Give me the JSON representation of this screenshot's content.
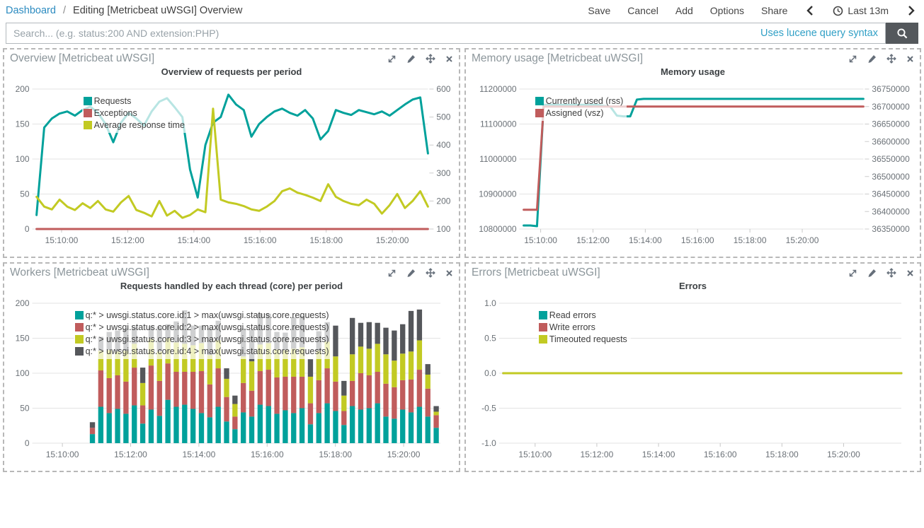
{
  "nav": {
    "breadcrumb": {
      "link": "Dashboard",
      "separator": "/",
      "current": "Editing [Metricbeat uWSGI] Overview"
    },
    "actions": [
      {
        "label": "Save"
      },
      {
        "label": "Cancel"
      },
      {
        "label": "Add"
      },
      {
        "label": "Options"
      },
      {
        "label": "Share"
      }
    ],
    "time_picker": {
      "label": "Last 13m"
    }
  },
  "search": {
    "placeholder": "Search... (e.g. status:200 AND extension:PHP)",
    "hint": "Uses lucene query syntax"
  },
  "colors": {
    "teal": "#00a19b",
    "red": "#c05c5c",
    "yellow": "#c2ca23",
    "dark_gray": "#55575b",
    "link": "#2c8bc0",
    "hint": "#31a0c6",
    "button_bg": "#54585c"
  },
  "panels": [
    {
      "title": "Overview [Metricbeat uWSGI]"
    },
    {
      "title": "Memory usage [Metricbeat uWSGI]"
    },
    {
      "title": "Workers [Metricbeat uWSGI]"
    },
    {
      "title": "Errors [Metricbeat uWSGI]"
    }
  ],
  "chart_data": [
    {
      "type": "line",
      "title": "Overview of requests per period",
      "left_axis": {
        "min": 0,
        "max": 200,
        "ticks": [
          {
            "v": 0,
            "label": "0"
          },
          {
            "v": 50,
            "label": "50"
          },
          {
            "v": 100,
            "label": "100"
          },
          {
            "v": 150,
            "label": "150"
          },
          {
            "v": 200,
            "label": "200"
          }
        ]
      },
      "right_axis": {
        "min": 100,
        "max": 600,
        "ticks": [
          {
            "v": 100,
            "label": "100"
          },
          {
            "v": 200,
            "label": "200"
          },
          {
            "v": 300,
            "label": "300"
          },
          {
            "v": 400,
            "label": "400"
          },
          {
            "v": 500,
            "label": "500"
          },
          {
            "v": 600,
            "label": "600"
          }
        ]
      },
      "x_ticks": [
        {
          "pos": 0.064,
          "label": "15:10:00"
        },
        {
          "pos": 0.233,
          "label": "15:12:00"
        },
        {
          "pos": 0.402,
          "label": "15:14:00"
        },
        {
          "pos": 0.571,
          "label": "15:16:00"
        },
        {
          "pos": 0.74,
          "label": "15:18:00"
        },
        {
          "pos": 0.909,
          "label": "15:20:00"
        }
      ],
      "legend": [
        {
          "label": "Requests",
          "color": "#00a19b"
        },
        {
          "label": "Exceptions",
          "color": "#c05c5c"
        },
        {
          "label": "Average response time",
          "color": "#c2ca23"
        }
      ],
      "series": [
        {
          "name": "Requests",
          "axis": "left",
          "color": "#00a19b",
          "values": [
            20,
            145,
            158,
            165,
            168,
            162,
            170,
            175,
            166,
            150,
            124,
            152,
            166,
            158,
            148,
            168,
            182,
            187,
            174,
            160,
            85,
            45,
            120,
            152,
            160,
            192,
            178,
            170,
            132,
            150,
            160,
            168,
            172,
            166,
            162,
            170,
            158,
            128,
            140,
            170,
            166,
            163,
            170,
            167,
            164,
            168,
            162,
            170,
            178,
            185,
            188,
            108
          ]
        },
        {
          "name": "Exceptions",
          "axis": "left",
          "color": "#c05c5c",
          "flat": 0
        },
        {
          "name": "Average response time",
          "axis": "right",
          "color": "#c2ca23",
          "values": [
            215,
            180,
            170,
            205,
            180,
            168,
            192,
            175,
            200,
            170,
            162,
            195,
            218,
            168,
            158,
            145,
            200,
            148,
            165,
            140,
            150,
            170,
            160,
            530,
            205,
            195,
            190,
            182,
            170,
            165,
            180,
            200,
            235,
            245,
            230,
            222,
            212,
            200,
            260,
            215,
            200,
            190,
            185,
            205,
            190,
            155,
            185,
            225,
            175,
            200,
            235,
            180
          ]
        }
      ]
    },
    {
      "type": "line",
      "title": "Memory usage",
      "left_axis": {
        "min": 10800000,
        "max": 11200000,
        "ticks": [
          {
            "v": 10800000,
            "label": "10800000"
          },
          {
            "v": 10900000,
            "label": "10900000"
          },
          {
            "v": 11000000,
            "label": "11000000"
          },
          {
            "v": 11100000,
            "label": "11100000"
          },
          {
            "v": 11200000,
            "label": "11200000"
          }
        ]
      },
      "right_axis": {
        "min": 36350000,
        "max": 36750000,
        "ticks": [
          {
            "v": 36350000,
            "label": "36350000"
          },
          {
            "v": 36400000,
            "label": "36400000"
          },
          {
            "v": 36450000,
            "label": "36450000"
          },
          {
            "v": 36500000,
            "label": "36500000"
          },
          {
            "v": 36550000,
            "label": "36550000"
          },
          {
            "v": 36600000,
            "label": "36600000"
          },
          {
            "v": 36650000,
            "label": "36650000"
          },
          {
            "v": 36700000,
            "label": "36700000"
          },
          {
            "v": 36750000,
            "label": "36750000"
          }
        ]
      },
      "x_ticks": [
        {
          "pos": 0.05,
          "label": "15:10:00"
        },
        {
          "pos": 0.204,
          "label": "15:12:00"
        },
        {
          "pos": 0.358,
          "label": "15:14:00"
        },
        {
          "pos": 0.512,
          "label": "15:16:00"
        },
        {
          "pos": 0.666,
          "label": "15:18:00"
        },
        {
          "pos": 0.82,
          "label": "15:20:00"
        }
      ],
      "legend": [
        {
          "label": "Currently used (rss)",
          "color": "#00a19b"
        },
        {
          "label": "Assigned (vsz)",
          "color": "#c05c5c"
        }
      ],
      "series": [
        {
          "name": "Currently used (rss)",
          "axis": "left",
          "color": "#00a19b",
          "values": [
            10810000,
            10810000,
            10808000,
            11155000,
            11155000,
            11155000,
            11155000,
            11155000,
            11155000,
            11155000,
            11155000,
            11155000,
            11152000,
            11150000,
            11124000,
            11122000,
            11122000,
            11170000,
            11172000,
            11172000,
            11172000,
            11172000,
            11172000,
            11172000,
            11172000,
            11172000,
            11172000,
            11172000,
            11172000,
            11172000,
            11172000,
            11172000,
            11172000,
            11172000,
            11172000,
            11172000,
            11172000,
            11172000,
            11172000,
            11172000,
            11172000,
            11172000,
            11172000,
            11172000,
            11172000,
            11172000,
            11172000,
            11172000,
            11172000,
            11172000,
            11172000,
            11172000
          ]
        },
        {
          "name": "Assigned (vsz)",
          "axis": "right",
          "color": "#c05c5c",
          "values": [
            36405000,
            36405000,
            36405000,
            36700000,
            36700000,
            36700000,
            36700000,
            36700000,
            36700000,
            36700000,
            36700000,
            36700000,
            36700000,
            36700000,
            36700000,
            36700000,
            36700000,
            36700000,
            36700000,
            36700000,
            36700000,
            36700000,
            36700000,
            36700000,
            36700000,
            36700000,
            36700000,
            36700000,
            36700000,
            36700000,
            36700000,
            36700000,
            36700000,
            36700000,
            36700000,
            36700000,
            36700000,
            36700000,
            36700000,
            36700000,
            36700000,
            36700000,
            36700000,
            36700000,
            36700000,
            36700000,
            36700000,
            36700000,
            36700000,
            36700000,
            36700000,
            36700000
          ]
        }
      ]
    },
    {
      "type": "bar",
      "title": "Requests handled by each thread (core) per period",
      "left_axis": {
        "min": 0,
        "max": 200,
        "ticks": [
          {
            "v": 0,
            "label": "0"
          },
          {
            "v": 50,
            "label": "50"
          },
          {
            "v": 100,
            "label": "100"
          },
          {
            "v": 150,
            "label": "150"
          },
          {
            "v": 200,
            "label": "200"
          }
        ]
      },
      "x_ticks": [
        {
          "pos": 0.064,
          "label": "15:10:00"
        },
        {
          "pos": 0.233,
          "label": "15:12:00"
        },
        {
          "pos": 0.402,
          "label": "15:14:00"
        },
        {
          "pos": 0.571,
          "label": "15:16:00"
        },
        {
          "pos": 0.74,
          "label": "15:18:00"
        },
        {
          "pos": 0.909,
          "label": "15:20:00"
        }
      ],
      "legend": [
        {
          "label": "q:* > uwsgi.status.core.id:1 > max(uwsgi.status.core.requests)",
          "color": "#00a19b"
        },
        {
          "label": "q:* > uwsgi.status.core.id:2 > max(uwsgi.status.core.requests)",
          "color": "#c05c5c"
        },
        {
          "label": "q:* > uwsgi.status.core.id:3 > max(uwsgi.status.core.requests)",
          "color": "#c2ca23"
        },
        {
          "label": "q:* > uwsgi.status.core.id:4 > max(uwsgi.status.core.requests)",
          "color": "#55575b"
        }
      ],
      "bars": {
        "x0": 0.128,
        "x1": 1.0,
        "colors": [
          "#00a19b",
          "#c05c5c",
          "#c2ca23",
          "#55575b"
        ],
        "series_names": [
          "q:* > uwsgi.status.core.id:1 > max(uwsgi.status.core.requests)",
          "q:* > uwsgi.status.core.id:2 > max(uwsgi.status.core.requests)",
          "q:* > uwsgi.status.core.id:3 > max(uwsgi.status.core.requests)",
          "q:* > uwsgi.status.core.id:4 > max(uwsgi.status.core.requests)"
        ],
        "values": [
          [
            13,
            9,
            0,
            8
          ],
          [
            52,
            52,
            28,
            20
          ],
          [
            43,
            50,
            40,
            26
          ],
          [
            49,
            48,
            34,
            30
          ],
          [
            42,
            46,
            44,
            32
          ],
          [
            54,
            54,
            34,
            24
          ],
          [
            28,
            26,
            32,
            22
          ],
          [
            48,
            63,
            38,
            18
          ],
          [
            39,
            50,
            42,
            36
          ],
          [
            62,
            52,
            36,
            20
          ],
          [
            52,
            50,
            42,
            30
          ],
          [
            55,
            47,
            40,
            48
          ],
          [
            49,
            53,
            38,
            28
          ],
          [
            43,
            60,
            40,
            25
          ],
          [
            37,
            47,
            42,
            38
          ],
          [
            52,
            55,
            40,
            28
          ],
          [
            31,
            35,
            26,
            15
          ],
          [
            20,
            18,
            18,
            12
          ],
          [
            44,
            42,
            38,
            40
          ],
          [
            38,
            37,
            42,
            45
          ],
          [
            55,
            48,
            38,
            44
          ],
          [
            53,
            52,
            38,
            42
          ],
          [
            42,
            52,
            40,
            25
          ],
          [
            47,
            48,
            38,
            25
          ],
          [
            43,
            52,
            40,
            45
          ],
          [
            50,
            45,
            42,
            45
          ],
          [
            27,
            30,
            38,
            25
          ],
          [
            43,
            47,
            42,
            28
          ],
          [
            57,
            50,
            38,
            28
          ],
          [
            46,
            42,
            36,
            44
          ],
          [
            26,
            20,
            22,
            21
          ],
          [
            53,
            36,
            38,
            52
          ],
          [
            48,
            52,
            38,
            34
          ],
          [
            50,
            47,
            38,
            38
          ],
          [
            57,
            45,
            40,
            30
          ],
          [
            38,
            47,
            42,
            38
          ],
          [
            35,
            45,
            38,
            43
          ],
          [
            48,
            42,
            38,
            42
          ],
          [
            44,
            47,
            40,
            58
          ],
          [
            52,
            53,
            42,
            44
          ],
          [
            38,
            40,
            20,
            15
          ],
          [
            22,
            18,
            5,
            8
          ]
        ]
      }
    },
    {
      "type": "line",
      "title": "Errors",
      "left_axis": {
        "min": -1,
        "max": 1,
        "ticks": [
          {
            "v": -1,
            "label": "-1.0"
          },
          {
            "v": -0.5,
            "label": "-0.5"
          },
          {
            "v": 0,
            "label": "0.0"
          },
          {
            "v": 0.5,
            "label": "0.5"
          },
          {
            "v": 1,
            "label": "1.0"
          }
        ]
      },
      "x_ticks": [
        {
          "pos": 0.08,
          "label": "15:10:00"
        },
        {
          "pos": 0.235,
          "label": "15:12:00"
        },
        {
          "pos": 0.39,
          "label": "15:14:00"
        },
        {
          "pos": 0.545,
          "label": "15:16:00"
        },
        {
          "pos": 0.7,
          "label": "15:18:00"
        },
        {
          "pos": 0.855,
          "label": "15:20:00"
        }
      ],
      "legend": [
        {
          "label": "Read errors",
          "color": "#00a19b"
        },
        {
          "label": "Write errors",
          "color": "#c05c5c"
        },
        {
          "label": "Timeouted requests",
          "color": "#c2ca23"
        }
      ],
      "series": [
        {
          "name": "Read errors",
          "axis": "left",
          "color": "#00a19b",
          "flat": 0
        },
        {
          "name": "Write errors",
          "axis": "left",
          "color": "#c05c5c",
          "flat": 0
        },
        {
          "name": "Timeouted requests",
          "axis": "left",
          "color": "#c2ca23",
          "flat": 0
        }
      ]
    }
  ]
}
